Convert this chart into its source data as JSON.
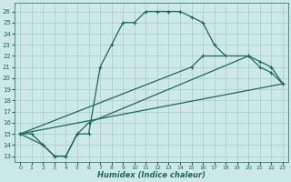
{
  "xlabel": "Humidex (Indice chaleur)",
  "background_color": "#cce8e8",
  "grid_color": "#aacccc",
  "line_color": "#1a6b5a",
  "xlim": [
    -0.5,
    23.5
  ],
  "ylim": [
    12.5,
    26.8
  ],
  "xticks": [
    0,
    1,
    2,
    3,
    4,
    5,
    6,
    7,
    8,
    9,
    10,
    11,
    12,
    13,
    14,
    15,
    16,
    17,
    18,
    19,
    20,
    21,
    22,
    23
  ],
  "yticks": [
    13,
    14,
    15,
    16,
    17,
    18,
    19,
    20,
    21,
    22,
    23,
    24,
    25,
    26
  ],
  "line1_x": [
    0,
    1,
    2,
    3,
    4,
    5,
    6,
    7,
    8,
    9,
    10,
    11,
    12,
    13,
    14,
    15,
    16,
    17,
    18
  ],
  "line1_y": [
    15,
    15,
    14,
    13,
    13,
    15,
    15,
    21,
    23,
    25,
    25,
    26,
    26,
    26,
    26,
    25.5,
    25,
    23,
    22
  ],
  "line2_x": [
    0,
    2,
    3,
    4,
    5,
    6,
    20,
    21,
    22,
    23
  ],
  "line2_y": [
    15,
    14,
    13,
    13,
    15,
    16,
    22,
    21,
    20.5,
    19.5
  ],
  "line3_x": [
    0,
    23
  ],
  "line3_y": [
    15,
    19.5
  ],
  "line4_x": [
    0,
    15,
    16,
    20,
    21,
    22,
    23
  ],
  "line4_y": [
    15,
    21,
    22,
    22,
    21.5,
    21,
    19.5
  ]
}
